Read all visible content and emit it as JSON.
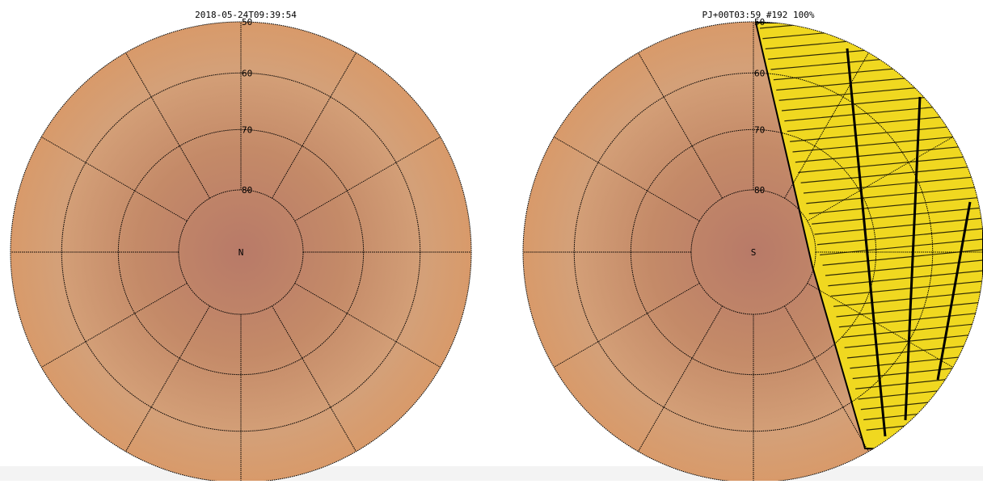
{
  "panels": [
    {
      "title": "2018-05-24T09:39:54",
      "pole": "N",
      "latitudes": [
        50,
        60,
        70,
        80
      ]
    },
    {
      "title": "PJ+00T03:59 #192 100%",
      "pole": "S",
      "latitudes": [
        50,
        60,
        70,
        80
      ]
    }
  ]
}
